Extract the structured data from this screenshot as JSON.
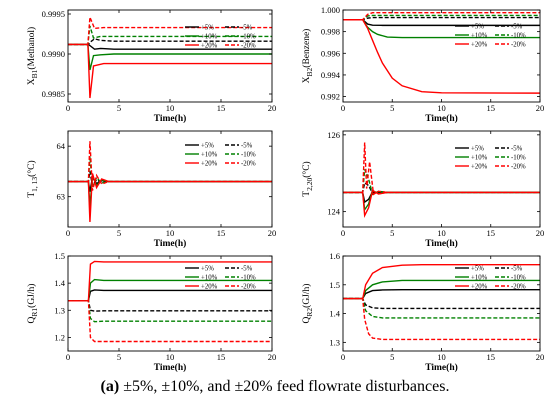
{
  "caption": {
    "label": "(a)",
    "text": " ±5%, ±10%, and ±20% feed flowrate disturbances."
  },
  "colors": {
    "pm5": "#000000",
    "pm10": "#008000",
    "pm20": "#ff0000"
  },
  "chart_data": [
    {
      "type": "line",
      "ylabel_main": "X",
      "ylabel_sub": "B1",
      "ylabel_tail": "(Methanol)",
      "xlabel": "Time(h)",
      "xlim": [
        0,
        20
      ],
      "ylim": [
        0.9984,
        0.99955
      ],
      "xticks": [
        0,
        5,
        10,
        15,
        20
      ],
      "yticks": [
        0.9985,
        0.999,
        0.9995
      ],
      "yticklabels": [
        "0.9985",
        "0.9990",
        "0.9995"
      ],
      "legend": [
        "+5%",
        "-5%",
        "+10%",
        "-10%",
        "+20%",
        "-20%"
      ],
      "legend_position": "center-right",
      "series": [
        {
          "name": "+5%",
          "color": "pm5",
          "dash": false,
          "x": [
            0,
            2,
            2.2,
            2.6,
            3.2,
            4.5,
            20
          ],
          "y": [
            0.99912,
            0.99912,
            0.9991,
            0.99906,
            0.99907,
            0.99906,
            0.99906
          ]
        },
        {
          "name": "-5%",
          "color": "pm5",
          "dash": true,
          "x": [
            0,
            2,
            2.2,
            2.6,
            3.2,
            4.5,
            20
          ],
          "y": [
            0.99912,
            0.99912,
            0.99915,
            0.99919,
            0.99917,
            0.99916,
            0.99916
          ]
        },
        {
          "name": "+10%",
          "color": "pm10",
          "dash": false,
          "x": [
            0,
            1.95,
            2.15,
            2.5,
            3.2,
            4.5,
            20
          ],
          "y": [
            0.99912,
            0.99912,
            0.9988,
            0.99898,
            0.99899,
            0.999,
            0.999
          ]
        },
        {
          "name": "-10%",
          "color": "pm10",
          "dash": true,
          "x": [
            0,
            1.95,
            2.15,
            2.5,
            3.2,
            4.5,
            20
          ],
          "y": [
            0.99912,
            0.99912,
            0.99935,
            0.9992,
            0.99922,
            0.99922,
            0.99922
          ]
        },
        {
          "name": "+20%",
          "color": "pm20",
          "dash": false,
          "x": [
            0,
            1.95,
            2.15,
            2.5,
            3.5,
            5,
            20
          ],
          "y": [
            0.99912,
            0.99912,
            0.99845,
            0.99885,
            0.99888,
            0.99888,
            0.99888
          ]
        },
        {
          "name": "-20%",
          "color": "pm20",
          "dash": true,
          "x": [
            0,
            1.95,
            2.15,
            2.6,
            3.5,
            5,
            20
          ],
          "y": [
            0.99912,
            0.99912,
            0.99946,
            0.99932,
            0.99933,
            0.99933,
            0.99933
          ]
        }
      ]
    },
    {
      "type": "line",
      "ylabel_main": "X",
      "ylabel_sub": "B2",
      "ylabel_tail": "(Benzene)",
      "xlabel": "Time(h)",
      "xlim": [
        0,
        20
      ],
      "ylim": [
        0.9915,
        1.0
      ],
      "xticks": [
        0,
        5,
        10,
        15,
        20
      ],
      "yticks": [
        0.992,
        0.994,
        0.996,
        0.998,
        1.0
      ],
      "yticklabels": [
        "0.992",
        "0.994",
        "0.996",
        "0.998",
        "1.000"
      ],
      "legend": [
        "+5%",
        "-5%",
        "+10%",
        "-10%",
        "+20%",
        "-20%"
      ],
      "legend_position": "center-right",
      "series": [
        {
          "name": "+5%",
          "color": "pm5",
          "dash": false,
          "x": [
            0,
            2,
            2.5,
            3,
            4,
            6,
            20
          ],
          "y": [
            0.9991,
            0.9991,
            0.9987,
            0.9986,
            0.99858,
            0.99858,
            0.99858
          ]
        },
        {
          "name": "-5%",
          "color": "pm5",
          "dash": true,
          "x": [
            0,
            2,
            2.5,
            3,
            4,
            20
          ],
          "y": [
            0.9991,
            0.9991,
            0.99925,
            0.9993,
            0.9993,
            0.9993
          ]
        },
        {
          "name": "+10%",
          "color": "pm10",
          "dash": false,
          "x": [
            0,
            2,
            2.5,
            3,
            3.5,
            4.5,
            6,
            20
          ],
          "y": [
            0.9991,
            0.9991,
            0.9984,
            0.998,
            0.99775,
            0.9975,
            0.99745,
            0.99745
          ]
        },
        {
          "name": "-10%",
          "color": "pm10",
          "dash": true,
          "x": [
            0,
            2,
            2.5,
            3,
            20
          ],
          "y": [
            0.9991,
            0.9991,
            0.99945,
            0.9995,
            0.9995
          ]
        },
        {
          "name": "+20%",
          "color": "pm20",
          "dash": false,
          "x": [
            0,
            2,
            2.5,
            3,
            3.5,
            4,
            5,
            6,
            8,
            10,
            20
          ],
          "y": [
            0.9991,
            0.9991,
            0.9983,
            0.9972,
            0.9961,
            0.9951,
            0.9937,
            0.993,
            0.99245,
            0.99235,
            0.99232
          ]
        },
        {
          "name": "-20%",
          "color": "pm20",
          "dash": true,
          "x": [
            0,
            2,
            2.5,
            3,
            20
          ],
          "y": [
            0.9991,
            0.9991,
            0.9996,
            0.99975,
            0.99975
          ]
        }
      ]
    },
    {
      "type": "line",
      "ylabel_main": "T",
      "ylabel_sub": "1, 13",
      "ylabel_tail": "(°C)",
      "xlabel": "Time(h)",
      "xlim": [
        0,
        20
      ],
      "ylim": [
        62.4,
        64.3
      ],
      "xticks": [
        0,
        5,
        10,
        15,
        20
      ],
      "yticks": [
        63,
        64
      ],
      "yticklabels": [
        "63",
        "64"
      ],
      "legend": [
        "+5%",
        "-5%",
        "+10%",
        "-10%",
        "+20%",
        "-20%"
      ],
      "legend_position": "center-right",
      "series": [
        {
          "name": "+5%",
          "color": "pm5",
          "dash": false,
          "x": [
            0,
            2,
            2.15,
            2.4,
            2.8,
            3.3,
            4,
            20
          ],
          "y": [
            63.3,
            63.3,
            63.1,
            63.38,
            63.26,
            63.32,
            63.3,
            63.3
          ]
        },
        {
          "name": "-5%",
          "color": "pm5",
          "dash": true,
          "x": [
            0,
            2,
            2.15,
            2.4,
            2.8,
            3.3,
            4,
            20
          ],
          "y": [
            63.3,
            63.3,
            63.5,
            63.22,
            63.34,
            63.28,
            63.3,
            63.3
          ]
        },
        {
          "name": "+10%",
          "color": "pm10",
          "dash": false,
          "x": [
            0,
            2,
            2.15,
            2.4,
            2.8,
            3.3,
            4,
            20
          ],
          "y": [
            63.3,
            63.3,
            62.8,
            63.42,
            63.22,
            63.33,
            63.3,
            63.3
          ]
        },
        {
          "name": "-10%",
          "color": "pm10",
          "dash": true,
          "x": [
            0,
            2,
            2.15,
            2.4,
            2.8,
            3.3,
            4,
            20
          ],
          "y": [
            63.3,
            63.3,
            63.8,
            63.18,
            63.38,
            63.27,
            63.3,
            63.3
          ]
        },
        {
          "name": "+20%",
          "color": "pm20",
          "dash": false,
          "x": [
            0,
            2,
            2.15,
            2.4,
            2.8,
            3.3,
            4,
            20
          ],
          "y": [
            63.3,
            63.3,
            62.5,
            63.46,
            63.18,
            63.35,
            63.3,
            63.3
          ]
        },
        {
          "name": "-20%",
          "color": "pm20",
          "dash": true,
          "x": [
            0,
            2,
            2.15,
            2.4,
            2.8,
            3.3,
            4,
            20
          ],
          "y": [
            63.3,
            63.3,
            64.1,
            63.12,
            63.42,
            63.25,
            63.3,
            63.3
          ]
        }
      ]
    },
    {
      "type": "line",
      "ylabel_main": "T",
      "ylabel_sub": "2,20",
      "ylabel_tail": "(°C)",
      "xlabel": "Time(h)",
      "xlim": [
        0,
        20
      ],
      "ylim": [
        123.6,
        126.1
      ],
      "xticks": [
        0,
        5,
        10,
        15,
        20
      ],
      "yticks": [
        124,
        126
      ],
      "yticklabels": [
        "124",
        "126"
      ],
      "legend": [
        "+5%",
        "-5%",
        "+10%",
        "-10%",
        "+20%",
        "-20%"
      ],
      "legend_position": "top-right",
      "series": [
        {
          "name": "+5%",
          "color": "pm5",
          "dash": false,
          "x": [
            0,
            2,
            2.2,
            2.6,
            3,
            3.6,
            4.5,
            20
          ],
          "y": [
            124.5,
            124.5,
            124.25,
            124.32,
            124.52,
            124.48,
            124.5,
            124.5
          ]
        },
        {
          "name": "-5%",
          "color": "pm5",
          "dash": true,
          "x": [
            0,
            2,
            2.2,
            2.6,
            3,
            3.6,
            4.5,
            20
          ],
          "y": [
            124.5,
            124.5,
            124.75,
            124.68,
            124.48,
            124.52,
            124.5,
            124.5
          ]
        },
        {
          "name": "+10%",
          "color": "pm10",
          "dash": false,
          "x": [
            0,
            2,
            2.2,
            2.6,
            3,
            3.6,
            4.5,
            20
          ],
          "y": [
            124.5,
            124.5,
            124.05,
            124.2,
            124.55,
            124.47,
            124.5,
            124.5
          ]
        },
        {
          "name": "-10%",
          "color": "pm10",
          "dash": true,
          "x": [
            0,
            2,
            2.2,
            2.6,
            3,
            3.6,
            4.5,
            20
          ],
          "y": [
            124.5,
            124.5,
            125.1,
            124.85,
            124.45,
            124.53,
            124.5,
            124.5
          ]
        },
        {
          "name": "+20%",
          "color": "pm20",
          "dash": false,
          "x": [
            0,
            2,
            2.2,
            2.6,
            3,
            3.6,
            4.5,
            20
          ],
          "y": [
            124.5,
            124.5,
            123.9,
            124.1,
            124.55,
            124.46,
            124.5,
            124.5
          ]
        },
        {
          "name": "-20%",
          "color": "pm20",
          "dash": true,
          "x": [
            0,
            2,
            2.2,
            2.4,
            2.7,
            3.1,
            3.6,
            4.5,
            20
          ],
          "y": [
            124.5,
            124.5,
            125.8,
            124.6,
            125.3,
            124.45,
            124.53,
            124.5,
            124.5
          ]
        }
      ]
    },
    {
      "type": "line",
      "ylabel_main": "Q",
      "ylabel_sub": "R1",
      "ylabel_tail": "(GJ/h)",
      "xlabel": "Time(h)",
      "xlim": [
        0,
        20
      ],
      "ylim": [
        1.15,
        1.5
      ],
      "xticks": [
        0,
        5,
        10,
        15,
        20
      ],
      "yticks": [
        1.2,
        1.3,
        1.4,
        1.5
      ],
      "yticklabels": [
        "1.2",
        "1.3",
        "1.4",
        "1.5"
      ],
      "legend": [
        "+5%",
        "-5%",
        "+10%",
        "-10%",
        "+20%",
        "-20%"
      ],
      "legend_position": "center-right",
      "series": [
        {
          "name": "+5%",
          "color": "pm5",
          "dash": false,
          "x": [
            0,
            2,
            2.2,
            2.6,
            3.5,
            20
          ],
          "y": [
            1.335,
            1.335,
            1.37,
            1.375,
            1.373,
            1.373
          ]
        },
        {
          "name": "-5%",
          "color": "pm5",
          "dash": true,
          "x": [
            0,
            2,
            2.2,
            2.6,
            3.5,
            20
          ],
          "y": [
            1.335,
            1.335,
            1.3,
            1.297,
            1.298,
            1.298
          ]
        },
        {
          "name": "+10%",
          "color": "pm10",
          "dash": false,
          "x": [
            0,
            2,
            2.2,
            2.6,
            3.5,
            20
          ],
          "y": [
            1.335,
            1.335,
            1.4,
            1.413,
            1.41,
            1.41
          ]
        },
        {
          "name": "-10%",
          "color": "pm10",
          "dash": true,
          "x": [
            0,
            2,
            2.2,
            2.6,
            3.5,
            20
          ],
          "y": [
            1.335,
            1.335,
            1.27,
            1.258,
            1.26,
            1.26
          ]
        },
        {
          "name": "+20%",
          "color": "pm20",
          "dash": false,
          "x": [
            0,
            2,
            2.2,
            2.6,
            3.5,
            20
          ],
          "y": [
            1.335,
            1.335,
            1.47,
            1.48,
            1.478,
            1.478
          ]
        },
        {
          "name": "-20%",
          "color": "pm20",
          "dash": true,
          "x": [
            0,
            2,
            2.2,
            2.6,
            3.5,
            20
          ],
          "y": [
            1.335,
            1.335,
            1.2,
            1.185,
            1.185,
            1.185
          ]
        }
      ]
    },
    {
      "type": "line",
      "ylabel_main": "Q",
      "ylabel_sub": "R2",
      "ylabel_tail": "(GJ/h)",
      "xlabel": "Time(h)",
      "xlim": [
        0,
        20
      ],
      "ylim": [
        1.27,
        1.6
      ],
      "xticks": [
        0,
        5,
        10,
        15,
        20
      ],
      "yticks": [
        1.3,
        1.4,
        1.5,
        1.6
      ],
      "yticklabels": [
        "1.3",
        "1.4",
        "1.5",
        "1.6"
      ],
      "legend": [
        "+5%",
        "-5%",
        "+10%",
        "-10%",
        "+20%",
        "-20%"
      ],
      "legend_position": "top-right",
      "series": [
        {
          "name": "+5%",
          "color": "pm5",
          "dash": false,
          "x": [
            0,
            2,
            2.3,
            3,
            4,
            6,
            20
          ],
          "y": [
            1.452,
            1.452,
            1.47,
            1.48,
            1.482,
            1.483,
            1.483
          ]
        },
        {
          "name": "-5%",
          "color": "pm5",
          "dash": true,
          "x": [
            0,
            2,
            2.3,
            3,
            4,
            20
          ],
          "y": [
            1.452,
            1.452,
            1.43,
            1.42,
            1.418,
            1.418
          ]
        },
        {
          "name": "+10%",
          "color": "pm10",
          "dash": false,
          "x": [
            0,
            2,
            2.3,
            3,
            4,
            6,
            20
          ],
          "y": [
            1.452,
            1.452,
            1.48,
            1.5,
            1.51,
            1.515,
            1.515
          ]
        },
        {
          "name": "-10%",
          "color": "pm10",
          "dash": true,
          "x": [
            0,
            2,
            2.3,
            3,
            4,
            20
          ],
          "y": [
            1.452,
            1.452,
            1.41,
            1.39,
            1.385,
            1.385
          ]
        },
        {
          "name": "+20%",
          "color": "pm20",
          "dash": false,
          "x": [
            0,
            2,
            2.3,
            3,
            4,
            6,
            8,
            20
          ],
          "y": [
            1.452,
            1.452,
            1.5,
            1.54,
            1.56,
            1.568,
            1.57,
            1.57
          ]
        },
        {
          "name": "-20%",
          "color": "pm20",
          "dash": true,
          "x": [
            0,
            2,
            2.2,
            2.6,
            3,
            4,
            20
          ],
          "y": [
            1.452,
            1.452,
            1.38,
            1.33,
            1.315,
            1.31,
            1.31
          ]
        }
      ]
    }
  ]
}
